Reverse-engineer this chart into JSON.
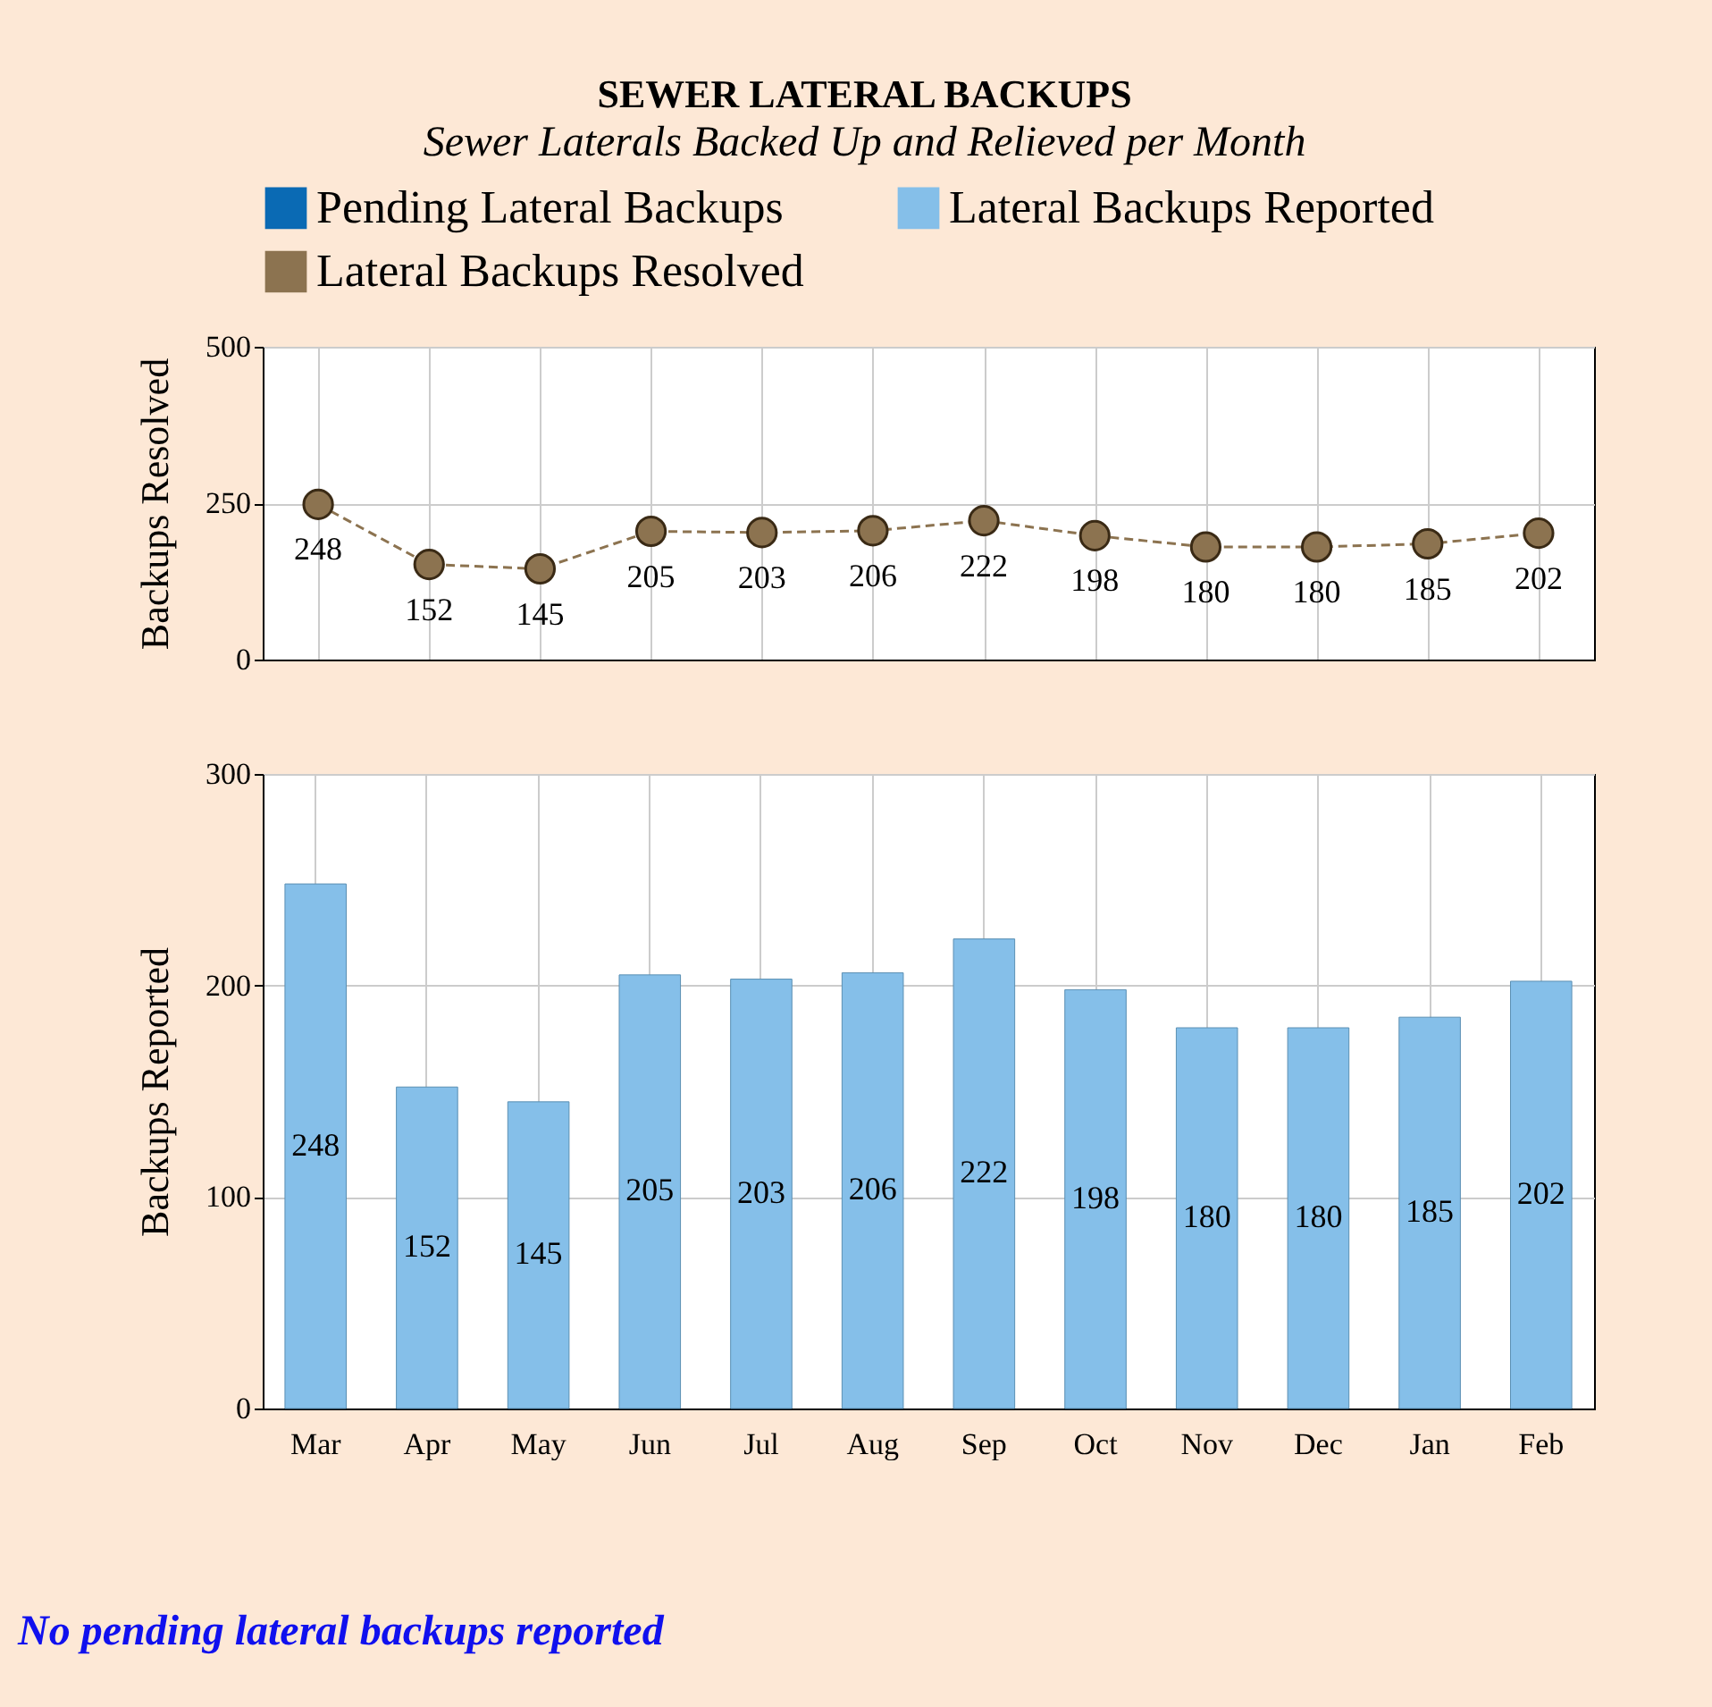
{
  "chart_data": [
    {
      "type": "line",
      "title": "SEWER LATERAL BACKUPS",
      "subtitle": "Sewer Laterals Backed Up and Relieved per Month",
      "categories": [
        null,
        null,
        null,
        null,
        null,
        null,
        null,
        null,
        null,
        null,
        null,
        null
      ],
      "series": [
        {
          "name": "Lateral Backups Resolved",
          "color": "#8c7350",
          "values": [
            248,
            152,
            145,
            205,
            203,
            206,
            222,
            198,
            180,
            180,
            185,
            202
          ]
        }
      ],
      "ylabel": "Backups Resolved",
      "ylim": [
        0,
        500
      ],
      "yticks": [
        0,
        250,
        500
      ],
      "grid": true,
      "legend": "top",
      "tick_labels": "y",
      "marker": "circle",
      "line_style": "dashed",
      "data_labels": true
    },
    {
      "type": "bar",
      "categories": [
        "Mar",
        "Apr",
        "May",
        "Jun",
        "Jul",
        "Aug",
        "Sep",
        "Oct",
        "Nov",
        "Dec",
        "Jan",
        "Feb"
      ],
      "series": [
        {
          "name": "Pending Lateral Backups",
          "color": "#0a6ab4",
          "values": [
            null,
            null,
            null,
            null,
            null,
            null,
            null,
            null,
            null,
            null,
            null,
            null
          ]
        },
        {
          "name": "Lateral Backups Reported",
          "color": "#85bfe9",
          "values": [
            248,
            152,
            145,
            205,
            203,
            206,
            222,
            198,
            180,
            180,
            185,
            202
          ]
        }
      ],
      "ylabel": "Backups Reported",
      "ylim": [
        0,
        300
      ],
      "yticks": [
        0,
        100,
        200,
        300
      ],
      "grid": true,
      "legend": "top",
      "data_labels": true,
      "annotations": [
        "No pending lateral backups reported"
      ]
    }
  ]
}
